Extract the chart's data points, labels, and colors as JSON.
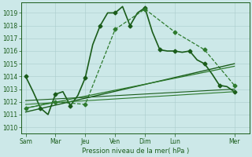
{
  "background_color": "#cce8e8",
  "grid_color": "#aacccc",
  "line_color_dark": "#1a5c1a",
  "xlabel_text": "Pression niveau de la mer( hPa )",
  "x_ticks_labels": [
    "Sam",
    "Mar",
    "Jeu",
    "Ven",
    "Dim",
    "Lun",
    "Mer"
  ],
  "x_ticks_pos": [
    0.0,
    2.0,
    4.0,
    6.0,
    8.0,
    10.0,
    14.0
  ],
  "xlim": [
    -0.3,
    15.0
  ],
  "ylim": [
    1009.5,
    1019.8
  ],
  "yticks": [
    1010,
    1011,
    1012,
    1013,
    1014,
    1015,
    1016,
    1017,
    1018,
    1019
  ],
  "series": [
    {
      "x": [
        0,
        0.5,
        1,
        1.5,
        2,
        2.5,
        3,
        3.5,
        4,
        4.5,
        5,
        5.5,
        6,
        6.5,
        7,
        7.5,
        8,
        8.5,
        9,
        9.5,
        10,
        10.5,
        11,
        11.5,
        12,
        12.5,
        13,
        13.5,
        14
      ],
      "y": [
        1014.0,
        1012.8,
        1011.5,
        1011.0,
        1012.6,
        1012.8,
        1011.7,
        1012.5,
        1013.9,
        1016.5,
        1018.0,
        1019.0,
        1019.0,
        1019.5,
        1018.0,
        1019.0,
        1019.4,
        1017.5,
        1016.1,
        1016.0,
        1016.0,
        1015.9,
        1016.0,
        1015.3,
        1015.0,
        1014.2,
        1013.3,
        1013.2,
        1012.8
      ],
      "style": "-",
      "marker": "D",
      "markersize": 2.5,
      "lw": 1.2,
      "color": "#1a5c1a",
      "markevery": [
        0,
        2,
        4,
        6,
        8,
        10,
        12,
        14,
        16,
        18,
        20,
        22,
        24,
        26,
        28
      ]
    },
    {
      "x": [
        0,
        2,
        4,
        6,
        8,
        10,
        12,
        14
      ],
      "y": [
        1011.5,
        1012.0,
        1011.8,
        1017.7,
        1019.3,
        1017.5,
        1016.1,
        1013.3
      ],
      "style": "--",
      "marker": "D",
      "markersize": 2.5,
      "lw": 0.9,
      "color": "#2d7a2d",
      "markevery": null
    },
    {
      "x": [
        0,
        14
      ],
      "y": [
        1011.2,
        1015.0
      ],
      "style": "-",
      "marker": null,
      "lw": 1.0,
      "color": "#1a5c1a"
    },
    {
      "x": [
        0,
        14
      ],
      "y": [
        1011.5,
        1014.8
      ],
      "style": "-",
      "marker": null,
      "lw": 0.9,
      "color": "#2d7a2d"
    },
    {
      "x": [
        0,
        14
      ],
      "y": [
        1011.8,
        1012.8
      ],
      "style": "-",
      "marker": null,
      "lw": 0.8,
      "color": "#2d7a2d"
    },
    {
      "x": [
        0,
        14
      ],
      "y": [
        1012.1,
        1013.0
      ],
      "style": "-",
      "marker": null,
      "lw": 0.8,
      "color": "#1a5c1a"
    }
  ]
}
